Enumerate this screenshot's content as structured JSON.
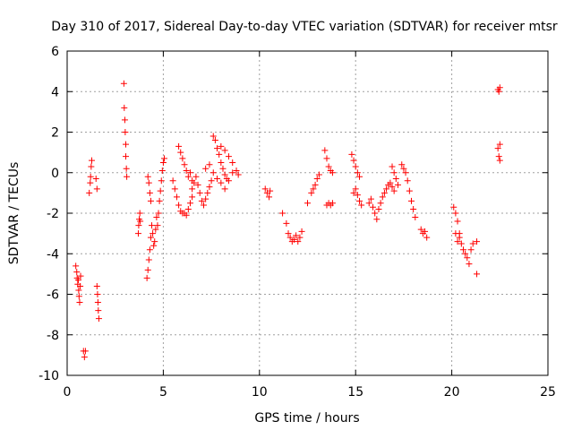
{
  "chart_data": {
    "type": "scatter",
    "title": "Day 310 of 2017, Sidereal Day-to-day VTEC variation (SDTVAR) for receiver mtsr",
    "xlabel": "GPS time / hours",
    "ylabel": "SDTVAR / TECUs",
    "xlim": [
      0,
      25
    ],
    "ylim": [
      -10,
      6
    ],
    "xticks": [
      0,
      5,
      10,
      15,
      20,
      25
    ],
    "yticks": [
      -10,
      -8,
      -6,
      -4,
      -2,
      0,
      2,
      4,
      6
    ],
    "grid": true,
    "marker": "+",
    "color": "#ff0000",
    "series": [
      {
        "name": "SDTVAR",
        "points": [
          [
            0.45,
            -4.6
          ],
          [
            0.5,
            -4.9
          ],
          [
            0.52,
            -5.2
          ],
          [
            0.55,
            -5.5
          ],
          [
            0.58,
            -5.3
          ],
          [
            0.6,
            -5.8
          ],
          [
            0.62,
            -6.1
          ],
          [
            0.65,
            -6.4
          ],
          [
            0.68,
            -5.6
          ],
          [
            0.7,
            -5.1
          ],
          [
            0.85,
            -8.8
          ],
          [
            0.9,
            -9.1
          ],
          [
            0.95,
            -8.8
          ],
          [
            1.15,
            -1.0
          ],
          [
            1.2,
            -0.5
          ],
          [
            1.22,
            -0.2
          ],
          [
            1.25,
            0.3
          ],
          [
            1.28,
            0.6
          ],
          [
            1.5,
            -0.3
          ],
          [
            1.55,
            -0.8
          ],
          [
            1.55,
            -5.6
          ],
          [
            1.58,
            -6.0
          ],
          [
            1.6,
            -6.4
          ],
          [
            1.62,
            -6.8
          ],
          [
            1.65,
            -7.2
          ],
          [
            2.95,
            4.4
          ],
          [
            2.97,
            3.2
          ],
          [
            3.0,
            2.6
          ],
          [
            3.02,
            2.0
          ],
          [
            3.05,
            1.4
          ],
          [
            3.05,
            0.8
          ],
          [
            3.08,
            0.2
          ],
          [
            3.1,
            -0.2
          ],
          [
            3.7,
            -3.0
          ],
          [
            3.72,
            -2.6
          ],
          [
            3.75,
            -2.3
          ],
          [
            3.78,
            -2.0
          ],
          [
            3.8,
            -2.4
          ],
          [
            4.15,
            -5.2
          ],
          [
            4.2,
            -4.8
          ],
          [
            4.25,
            -4.3
          ],
          [
            4.3,
            -3.8
          ],
          [
            4.35,
            -3.2
          ],
          [
            4.4,
            -2.6
          ],
          [
            4.45,
            -3.0
          ],
          [
            4.5,
            -3.6
          ],
          [
            4.55,
            -3.4
          ],
          [
            4.6,
            -2.8
          ],
          [
            4.65,
            -2.2
          ],
          [
            4.7,
            -2.6
          ],
          [
            4.75,
            -2.0
          ],
          [
            4.8,
            -1.4
          ],
          [
            4.85,
            -0.9
          ],
          [
            4.9,
            -0.4
          ],
          [
            4.95,
            0.1
          ],
          [
            5.0,
            0.5
          ],
          [
            5.05,
            0.7
          ],
          [
            4.2,
            -0.2
          ],
          [
            4.25,
            -0.5
          ],
          [
            4.3,
            -1.0
          ],
          [
            4.35,
            -1.4
          ],
          [
            5.5,
            -0.4
          ],
          [
            5.6,
            -0.8
          ],
          [
            5.7,
            -1.2
          ],
          [
            5.8,
            -1.6
          ],
          [
            5.9,
            -1.9
          ],
          [
            6.0,
            -2.0
          ],
          [
            6.1,
            -2.0
          ],
          [
            6.2,
            -2.1
          ],
          [
            6.3,
            -1.8
          ],
          [
            6.4,
            -1.5
          ],
          [
            6.5,
            -1.2
          ],
          [
            5.8,
            1.3
          ],
          [
            5.9,
            1.0
          ],
          [
            6.0,
            0.7
          ],
          [
            6.1,
            0.4
          ],
          [
            6.2,
            0.1
          ],
          [
            6.3,
            -0.2
          ],
          [
            6.4,
            0.0
          ],
          [
            6.5,
            -0.4
          ],
          [
            6.5,
            -0.8
          ],
          [
            6.6,
            -0.5
          ],
          [
            6.7,
            -0.2
          ],
          [
            6.8,
            -0.6
          ],
          [
            6.9,
            -1.0
          ],
          [
            7.0,
            -1.4
          ],
          [
            7.1,
            -1.6
          ],
          [
            7.2,
            -1.3
          ],
          [
            7.3,
            -1.0
          ],
          [
            7.4,
            -0.7
          ],
          [
            7.5,
            -0.4
          ],
          [
            7.6,
            1.8
          ],
          [
            7.7,
            1.6
          ],
          [
            7.8,
            1.2
          ],
          [
            7.9,
            0.9
          ],
          [
            8.0,
            0.5
          ],
          [
            8.1,
            0.2
          ],
          [
            8.2,
            -0.1
          ],
          [
            8.3,
            -0.3
          ],
          [
            8.0,
            1.3
          ],
          [
            8.2,
            1.1
          ],
          [
            8.4,
            0.8
          ],
          [
            8.6,
            0.5
          ],
          [
            8.8,
            0.1
          ],
          [
            8.9,
            -0.1
          ],
          [
            7.2,
            0.2
          ],
          [
            7.4,
            0.4
          ],
          [
            7.6,
            0.0
          ],
          [
            7.8,
            -0.3
          ],
          [
            8.0,
            -0.5
          ],
          [
            8.2,
            -0.8
          ],
          [
            8.4,
            -0.4
          ],
          [
            8.6,
            0.0
          ],
          [
            10.3,
            -0.8
          ],
          [
            10.4,
            -1.0
          ],
          [
            10.5,
            -1.2
          ],
          [
            10.55,
            -0.9
          ],
          [
            11.2,
            -2.0
          ],
          [
            11.4,
            -2.5
          ],
          [
            11.5,
            -3.0
          ],
          [
            11.6,
            -3.2
          ],
          [
            11.7,
            -3.4
          ],
          [
            11.8,
            -3.3
          ],
          [
            11.9,
            -3.1
          ],
          [
            12.0,
            -3.4
          ],
          [
            12.1,
            -3.2
          ],
          [
            12.2,
            -2.9
          ],
          [
            12.5,
            -1.5
          ],
          [
            12.7,
            -1.0
          ],
          [
            12.8,
            -0.8
          ],
          [
            12.9,
            -0.6
          ],
          [
            13.0,
            -0.3
          ],
          [
            13.1,
            -0.1
          ],
          [
            13.4,
            1.1
          ],
          [
            13.5,
            0.7
          ],
          [
            13.6,
            0.3
          ],
          [
            13.7,
            0.1
          ],
          [
            13.8,
            0.0
          ],
          [
            13.5,
            -1.6
          ],
          [
            13.6,
            -1.5
          ],
          [
            13.7,
            -1.6
          ],
          [
            13.8,
            -1.5
          ],
          [
            14.8,
            0.9
          ],
          [
            14.9,
            0.6
          ],
          [
            15.0,
            0.3
          ],
          [
            15.1,
            0.0
          ],
          [
            15.2,
            -0.2
          ],
          [
            14.9,
            -1.0
          ],
          [
            15.0,
            -0.8
          ],
          [
            15.1,
            -1.1
          ],
          [
            15.2,
            -1.4
          ],
          [
            15.3,
            -1.6
          ],
          [
            15.7,
            -1.5
          ],
          [
            15.8,
            -1.3
          ],
          [
            15.9,
            -1.7
          ],
          [
            16.0,
            -2.0
          ],
          [
            16.1,
            -2.3
          ],
          [
            16.2,
            -1.8
          ],
          [
            16.3,
            -1.5
          ],
          [
            16.4,
            -1.2
          ],
          [
            16.5,
            -1.0
          ],
          [
            16.6,
            -0.8
          ],
          [
            16.7,
            -0.6
          ],
          [
            16.8,
            -0.5
          ],
          [
            16.9,
            -0.7
          ],
          [
            17.0,
            -0.9
          ],
          [
            16.9,
            0.3
          ],
          [
            17.0,
            0.0
          ],
          [
            17.1,
            -0.3
          ],
          [
            17.2,
            -0.6
          ],
          [
            17.4,
            0.4
          ],
          [
            17.5,
            0.2
          ],
          [
            17.6,
            0.0
          ],
          [
            17.7,
            -0.4
          ],
          [
            17.8,
            -0.9
          ],
          [
            17.9,
            -1.4
          ],
          [
            18.0,
            -1.8
          ],
          [
            18.1,
            -2.2
          ],
          [
            18.4,
            -2.8
          ],
          [
            18.5,
            -3.0
          ],
          [
            18.6,
            -2.9
          ],
          [
            18.7,
            -3.2
          ],
          [
            20.1,
            -1.7
          ],
          [
            20.2,
            -2.0
          ],
          [
            20.3,
            -2.4
          ],
          [
            20.4,
            -3.0
          ],
          [
            20.5,
            -3.5
          ],
          [
            20.6,
            -3.8
          ],
          [
            20.7,
            -4.0
          ],
          [
            20.8,
            -4.2
          ],
          [
            20.9,
            -4.5
          ],
          [
            21.0,
            -3.8
          ],
          [
            21.1,
            -3.5
          ],
          [
            20.2,
            -3.0
          ],
          [
            20.3,
            -3.4
          ],
          [
            20.4,
            -3.2
          ],
          [
            21.3,
            -3.4
          ],
          [
            21.3,
            -5.0
          ],
          [
            22.4,
            4.1
          ],
          [
            22.45,
            4.0
          ],
          [
            22.5,
            4.2
          ],
          [
            22.4,
            1.2
          ],
          [
            22.45,
            0.8
          ],
          [
            22.5,
            0.6
          ],
          [
            22.5,
            1.4
          ]
        ]
      }
    ]
  }
}
